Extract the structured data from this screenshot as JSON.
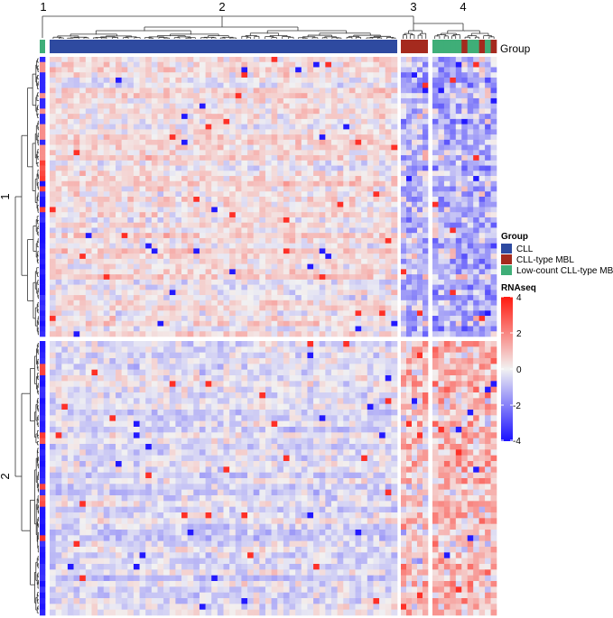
{
  "chart_data": {
    "type": "heatmap",
    "title": "",
    "column_cluster_labels": [
      "1",
      "2",
      "3",
      "4"
    ],
    "row_cluster_labels": [
      "1",
      "2"
    ],
    "annotation_track_label": "Group",
    "legends": {
      "group": {
        "title": "Group",
        "entries": [
          {
            "label": "CLL",
            "color": "#2e4aa0"
          },
          {
            "label": "CLL-type MBL",
            "color": "#a52a1e"
          },
          {
            "label": "Low-count CLL-type MBL",
            "color": "#3fae78"
          }
        ]
      },
      "rnaseq": {
        "title": "RNAseq",
        "ticks": [
          "4",
          "2",
          "0",
          "-2",
          "-4"
        ],
        "range": [
          -4,
          4
        ],
        "colors": {
          "low": "#1a10ff",
          "mid": "#f2f2f2",
          "high": "#ff1a10"
        }
      }
    },
    "column_group_colors": {
      "2": "#2e4aa0",
      "3": "#a52a1e",
      "4": "#3fae78"
    },
    "row_cluster_1_rows": 54,
    "row_cluster_2_rows": 48,
    "column_cluster_widths": [
      1,
      58,
      5,
      11
    ],
    "cluster_4_group_pattern": [
      "L",
      "L",
      "L",
      "L",
      "L",
      "M",
      "L",
      "L",
      "M",
      "L",
      "M"
    ]
  }
}
